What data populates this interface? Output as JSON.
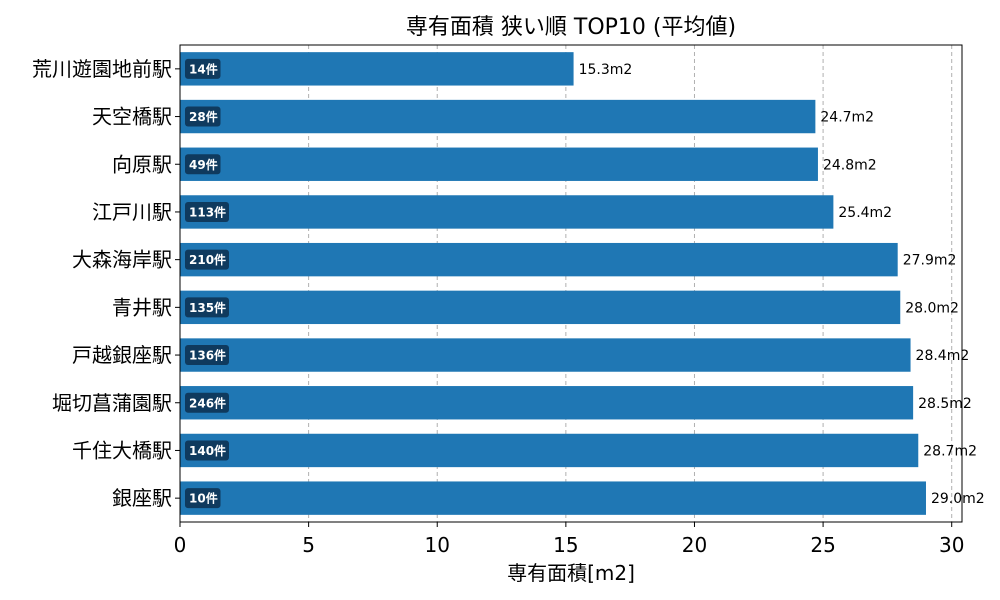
{
  "chart_data": {
    "type": "bar",
    "orientation": "horizontal",
    "title": "専有面積 狭い順 TOP10 (平均値)",
    "xlabel": "専有面積[m2]",
    "ylabel": "",
    "xlim": [
      0,
      30.4
    ],
    "xticks": [
      0,
      5,
      10,
      15,
      20,
      25,
      30
    ],
    "grid": "vertical-dashed",
    "bar_color": "#1f77b4",
    "categories": [
      "荒川遊園地前駅",
      "天空橋駅",
      "向原駅",
      "江戸川駅",
      "大森海岸駅",
      "青井駅",
      "戸越銀座駅",
      "堀切菖蒲園駅",
      "千住大橋駅",
      "銀座駅"
    ],
    "values": [
      15.3,
      24.7,
      24.8,
      25.4,
      27.9,
      28.0,
      28.4,
      28.5,
      28.7,
      29.0
    ],
    "value_labels": [
      "15.3m2",
      "24.7m2",
      "24.8m2",
      "25.4m2",
      "27.9m2",
      "28.0m2",
      "28.4m2",
      "28.5m2",
      "28.7m2",
      "29.0m2"
    ],
    "counts": [
      "14件",
      "28件",
      "49件",
      "113件",
      "210件",
      "135件",
      "136件",
      "246件",
      "140件",
      "10件"
    ]
  }
}
